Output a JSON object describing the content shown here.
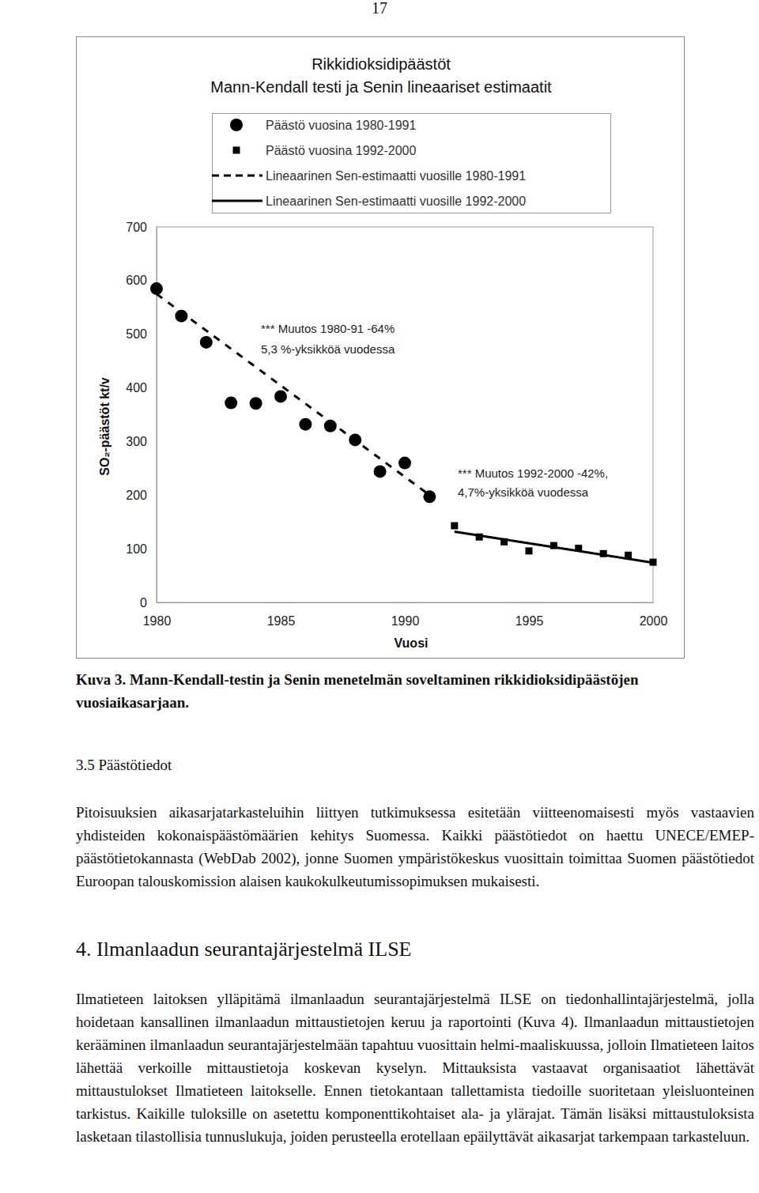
{
  "page_number": "17",
  "chart_data": {
    "type": "scatter",
    "title": "Rikkidioksidipäästöt",
    "subtitle": "Mann-Kendall testi ja Senin lineaariset estimaatit",
    "x_label": "Vuosi",
    "y_label": "SO₂-päästöt kt/v",
    "xlim": [
      1980,
      2000
    ],
    "xticks": [
      1980,
      1985,
      1990,
      1995,
      2000
    ],
    "ylim": [
      0,
      700
    ],
    "yticks": [
      0,
      100,
      200,
      300,
      400,
      500,
      600,
      700
    ],
    "grid": false,
    "legend": "top",
    "annotations": [
      "*** Muutos 1980-91 -64%",
      "5,3 %-yksikköä vuodessa",
      "*** Muutos 1992-2000 -42%,",
      "4,7%-yksikköä vuodessa"
    ],
    "series": [
      {
        "name": "Päästö vuosina 1980-1991",
        "type": "scatter",
        "marker": "circle",
        "color": "#000000",
        "x": [
          1980,
          1981,
          1982,
          1983,
          1984,
          1985,
          1986,
          1987,
          1988,
          1989,
          1990,
          1991
        ],
        "values": [
          585,
          534,
          485,
          372,
          371,
          384,
          332,
          329,
          303,
          244,
          260,
          197
        ]
      },
      {
        "name": "Päästö vuosina 1992-2000",
        "type": "scatter",
        "marker": "square",
        "color": "#000000",
        "x": [
          1992,
          1993,
          1994,
          1995,
          1996,
          1997,
          1998,
          1999,
          2000
        ],
        "values": [
          143,
          122,
          113,
          96,
          106,
          101,
          91,
          88,
          75
        ]
      },
      {
        "name": "Lineaarinen Sen-estimaatti vuosille 1980-1991",
        "type": "line",
        "line_style": "dashed",
        "color": "#000000",
        "x": [
          1980,
          1991
        ],
        "values": [
          575,
          200
        ]
      },
      {
        "name": "Lineaarinen Sen-estimaatti vuosille 1992-2000",
        "type": "line",
        "line_style": "solid",
        "color": "#000000",
        "x": [
          1992,
          2000
        ],
        "values": [
          132,
          74
        ]
      }
    ]
  },
  "caption": "Kuva 3. Mann-Kendall-testin ja Senin menetelmän soveltaminen rikkidioksidipäästöjen vuosiaikasarjaan.",
  "sections": [
    {
      "heading": "3.5 Päästötiedot",
      "paragraphs": [
        "Pitoisuuksien aikasarjatarkasteluihin liittyen tutkimuksessa esitetään viitteenomaisesti myös vastaavien yhdisteiden kokonaispäästömäärien kehitys Suomessa. Kaikki päästötiedot on haettu UNECE/EMEP-päästötietokannasta (WebDab 2002), jonne Suomen ympäristökeskus vuosittain toimittaa Suomen päästötiedot Euroopan talouskomission alaisen kaukokulkeutumissopimuksen mukaisesti."
      ]
    },
    {
      "heading": "4. Ilmanlaadun seurantajärjestelmä ILSE",
      "paragraphs": [
        "Ilmatieteen laitoksen ylläpitämä ilmanlaadun seurantajärjestelmä ILSE on tiedonhallintajärjestelmä, jolla hoidetaan kansallinen ilmanlaadun mittaustietojen keruu ja raportointi (Kuva 4). Ilmanlaadun mittaustietojen kerääminen ilmanlaadun seurantajärjestelmään tapahtuu vuosittain helmi-maaliskuussa, jolloin Ilmatieteen laitos lähettää verkoille mittaustietoja koskevan kyselyn. Mittauksista vastaavat organisaatiot lähettävät mittaustulokset Ilmatieteen laitokselle. Ennen tietokantaan tallettamista tiedoille suoritetaan yleisluonteinen tarkistus. Kaikille tuloksille on asetettu komponenttikohtaiset ala- ja ylärajat. Tämän lisäksi mittaustuloksista lasketaan tilastollisia tunnuslukuja, joiden perusteella erotellaan epäilyttävät aikasarjat tarkempaan tarkasteluun."
      ]
    }
  ]
}
